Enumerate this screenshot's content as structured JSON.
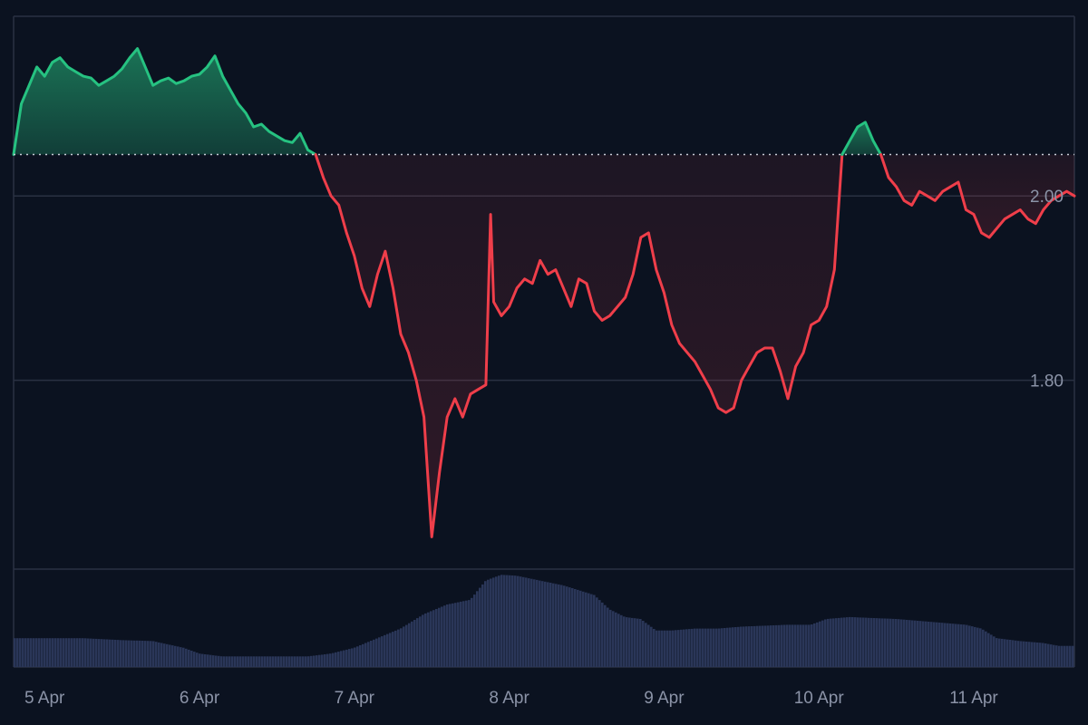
{
  "chart_data": {
    "type": "area",
    "title": "",
    "xlabel": "",
    "ylabel": "",
    "x_unit": "days since 5 Apr 00:00",
    "x_ticks": [
      {
        "label": "5 Apr",
        "x": 0
      },
      {
        "label": "6 Apr",
        "x": 1
      },
      {
        "label": "7 Apr",
        "x": 2
      },
      {
        "label": "8 Apr",
        "x": 3
      },
      {
        "label": "9 Apr",
        "x": 4
      },
      {
        "label": "10 Apr",
        "x": 5
      },
      {
        "label": "11 Apr",
        "x": 6
      }
    ],
    "xlim": [
      -0.2,
      6.65
    ],
    "ylim": [
      1.595,
      2.195
    ],
    "y_ticks": [
      {
        "label": "2.00",
        "value": 2.0
      },
      {
        "label": "1.80",
        "value": 1.8
      }
    ],
    "baseline": 2.045,
    "colors": {
      "above": "#26c281",
      "below": "#ef3e4a",
      "volume": "#2a3658",
      "grid": "#2a3142",
      "baseline": "#c8ccd6"
    },
    "grid": true,
    "price_series": [
      [
        -0.2,
        2.045
      ],
      [
        -0.15,
        2.1
      ],
      [
        -0.1,
        2.12
      ],
      [
        -0.05,
        2.14
      ],
      [
        0,
        2.13
      ],
      [
        0.05,
        2.145
      ],
      [
        0.1,
        2.15
      ],
      [
        0.15,
        2.14
      ],
      [
        0.2,
        2.135
      ],
      [
        0.25,
        2.13
      ],
      [
        0.3,
        2.128
      ],
      [
        0.35,
        2.12
      ],
      [
        0.4,
        2.125
      ],
      [
        0.45,
        2.13
      ],
      [
        0.5,
        2.138
      ],
      [
        0.55,
        2.15
      ],
      [
        0.6,
        2.16
      ],
      [
        0.65,
        2.14
      ],
      [
        0.7,
        2.12
      ],
      [
        0.75,
        2.125
      ],
      [
        0.8,
        2.128
      ],
      [
        0.85,
        2.122
      ],
      [
        0.9,
        2.125
      ],
      [
        0.95,
        2.13
      ],
      [
        1,
        2.132
      ],
      [
        1.05,
        2.14
      ],
      [
        1.1,
        2.152
      ],
      [
        1.15,
        2.13
      ],
      [
        1.2,
        2.115
      ],
      [
        1.25,
        2.1
      ],
      [
        1.3,
        2.09
      ],
      [
        1.35,
        2.075
      ],
      [
        1.4,
        2.078
      ],
      [
        1.45,
        2.07
      ],
      [
        1.5,
        2.065
      ],
      [
        1.55,
        2.06
      ],
      [
        1.6,
        2.058
      ],
      [
        1.65,
        2.068
      ],
      [
        1.7,
        2.05
      ],
      [
        1.75,
        2.045
      ],
      [
        1.8,
        2.02
      ],
      [
        1.85,
        2.0
      ],
      [
        1.9,
        1.99
      ],
      [
        1.95,
        1.96
      ],
      [
        2,
        1.935
      ],
      [
        2.05,
        1.9
      ],
      [
        2.1,
        1.88
      ],
      [
        2.15,
        1.915
      ],
      [
        2.2,
        1.94
      ],
      [
        2.25,
        1.9
      ],
      [
        2.3,
        1.85
      ],
      [
        2.35,
        1.83
      ],
      [
        2.4,
        1.8
      ],
      [
        2.45,
        1.76
      ],
      [
        2.5,
        1.63
      ],
      [
        2.55,
        1.7
      ],
      [
        2.6,
        1.76
      ],
      [
        2.65,
        1.78
      ],
      [
        2.7,
        1.76
      ],
      [
        2.75,
        1.785
      ],
      [
        2.8,
        1.79
      ],
      [
        2.85,
        1.795
      ],
      [
        2.88,
        1.98
      ],
      [
        2.9,
        1.885
      ],
      [
        2.95,
        1.87
      ],
      [
        3,
        1.88
      ],
      [
        3.05,
        1.9
      ],
      [
        3.1,
        1.91
      ],
      [
        3.15,
        1.905
      ],
      [
        3.2,
        1.93
      ],
      [
        3.25,
        1.915
      ],
      [
        3.3,
        1.92
      ],
      [
        3.35,
        1.9
      ],
      [
        3.4,
        1.88
      ],
      [
        3.45,
        1.91
      ],
      [
        3.5,
        1.905
      ],
      [
        3.55,
        1.875
      ],
      [
        3.6,
        1.865
      ],
      [
        3.65,
        1.87
      ],
      [
        3.7,
        1.88
      ],
      [
        3.75,
        1.89
      ],
      [
        3.8,
        1.915
      ],
      [
        3.85,
        1.955
      ],
      [
        3.9,
        1.96
      ],
      [
        3.95,
        1.92
      ],
      [
        4,
        1.895
      ],
      [
        4.05,
        1.86
      ],
      [
        4.1,
        1.84
      ],
      [
        4.15,
        1.83
      ],
      [
        4.2,
        1.82
      ],
      [
        4.25,
        1.805
      ],
      [
        4.3,
        1.79
      ],
      [
        4.35,
        1.77
      ],
      [
        4.4,
        1.765
      ],
      [
        4.45,
        1.77
      ],
      [
        4.5,
        1.8
      ],
      [
        4.55,
        1.815
      ],
      [
        4.6,
        1.83
      ],
      [
        4.65,
        1.835
      ],
      [
        4.7,
        1.835
      ],
      [
        4.75,
        1.81
      ],
      [
        4.8,
        1.78
      ],
      [
        4.85,
        1.815
      ],
      [
        4.9,
        1.83
      ],
      [
        4.95,
        1.86
      ],
      [
        5,
        1.865
      ],
      [
        5.05,
        1.88
      ],
      [
        5.1,
        1.92
      ],
      [
        5.15,
        2.045
      ],
      [
        5.2,
        2.06
      ],
      [
        5.25,
        2.075
      ],
      [
        5.3,
        2.08
      ],
      [
        5.35,
        2.06
      ],
      [
        5.4,
        2.045
      ],
      [
        5.45,
        2.02
      ],
      [
        5.5,
        2.01
      ],
      [
        5.55,
        1.995
      ],
      [
        5.6,
        1.99
      ],
      [
        5.65,
        2.005
      ],
      [
        5.7,
        2.0
      ],
      [
        5.75,
        1.995
      ],
      [
        5.8,
        2.005
      ],
      [
        5.85,
        2.01
      ],
      [
        5.9,
        2.015
      ],
      [
        5.95,
        1.985
      ],
      [
        6,
        1.98
      ],
      [
        6.05,
        1.96
      ],
      [
        6.1,
        1.955
      ],
      [
        6.15,
        1.965
      ],
      [
        6.2,
        1.975
      ],
      [
        6.25,
        1.98
      ],
      [
        6.3,
        1.985
      ],
      [
        6.35,
        1.975
      ],
      [
        6.4,
        1.97
      ],
      [
        6.45,
        1.985
      ],
      [
        6.5,
        1.995
      ],
      [
        6.55,
        2.0
      ],
      [
        6.6,
        2.005
      ],
      [
        6.65,
        2.0
      ]
    ],
    "volume_ylim": [
      0,
      100
    ],
    "volume_series": [
      [
        -0.2,
        30
      ],
      [
        0,
        30
      ],
      [
        0.25,
        30
      ],
      [
        0.5,
        28
      ],
      [
        0.7,
        27
      ],
      [
        0.9,
        20
      ],
      [
        1,
        14
      ],
      [
        1.15,
        11
      ],
      [
        1.3,
        11
      ],
      [
        1.5,
        11
      ],
      [
        1.7,
        11
      ],
      [
        1.85,
        14
      ],
      [
        2,
        20
      ],
      [
        2.15,
        30
      ],
      [
        2.3,
        40
      ],
      [
        2.45,
        55
      ],
      [
        2.6,
        65
      ],
      [
        2.75,
        70
      ],
      [
        2.85,
        90
      ],
      [
        2.95,
        96
      ],
      [
        3.05,
        95
      ],
      [
        3.2,
        90
      ],
      [
        3.35,
        85
      ],
      [
        3.45,
        80
      ],
      [
        3.55,
        75
      ],
      [
        3.65,
        60
      ],
      [
        3.75,
        52
      ],
      [
        3.85,
        50
      ],
      [
        3.95,
        38
      ],
      [
        4.05,
        38
      ],
      [
        4.2,
        40
      ],
      [
        4.35,
        40
      ],
      [
        4.5,
        42
      ],
      [
        4.65,
        43
      ],
      [
        4.8,
        44
      ],
      [
        4.95,
        44
      ],
      [
        5.05,
        50
      ],
      [
        5.2,
        52
      ],
      [
        5.35,
        51
      ],
      [
        5.5,
        50
      ],
      [
        5.65,
        48
      ],
      [
        5.8,
        46
      ],
      [
        5.95,
        44
      ],
      [
        6.05,
        40
      ],
      [
        6.15,
        30
      ],
      [
        6.3,
        27
      ],
      [
        6.45,
        25
      ],
      [
        6.55,
        22
      ],
      [
        6.65,
        22
      ]
    ]
  }
}
